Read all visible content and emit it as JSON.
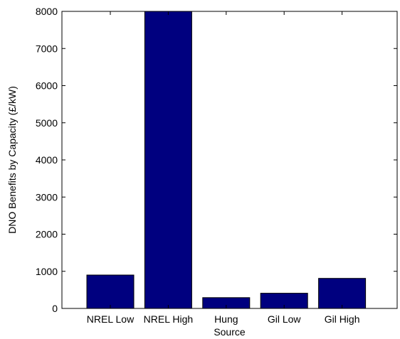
{
  "chart_data": {
    "type": "bar",
    "categories": [
      "NREL Low",
      "NREL High",
      "Hung",
      "Gil Low",
      "Gil High"
    ],
    "values": [
      900,
      8000,
      290,
      410,
      810
    ],
    "title": "",
    "xlabel": "Source",
    "ylabel": "DNO Benefits by Capacity (£/kW)",
    "ylim": [
      0,
      8000
    ],
    "yticks": [
      0,
      1000,
      2000,
      3000,
      4000,
      5000,
      6000,
      7000,
      8000
    ],
    "grid": false,
    "legend": "none",
    "colors": {
      "bar_fill": "#00007f",
      "bar_stroke": "#000000",
      "axis": "#000000",
      "background": "#ffffff"
    }
  }
}
